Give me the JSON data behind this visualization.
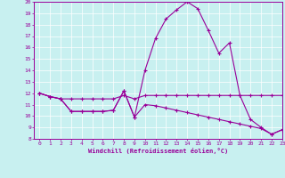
{
  "xlabel": "Windchill (Refroidissement éolien,°C)",
  "x": [
    0,
    1,
    2,
    3,
    4,
    5,
    6,
    7,
    8,
    9,
    10,
    11,
    12,
    13,
    14,
    15,
    16,
    17,
    18,
    19,
    20,
    21,
    22,
    23
  ],
  "line1": [
    12.0,
    11.7,
    11.5,
    11.5,
    11.5,
    11.5,
    11.5,
    11.5,
    11.8,
    11.5,
    11.8,
    11.8,
    11.8,
    11.8,
    11.8,
    11.8,
    11.8,
    11.8,
    11.8,
    11.8,
    11.8,
    11.8,
    11.8,
    11.8
  ],
  "line2": [
    12.0,
    11.7,
    11.5,
    10.4,
    10.4,
    10.4,
    10.4,
    10.5,
    12.2,
    9.9,
    14.0,
    16.8,
    18.5,
    19.3,
    20.0,
    19.4,
    17.5,
    15.5,
    16.4,
    11.8,
    9.7,
    9.0,
    8.4,
    8.8
  ],
  "line3": [
    12.0,
    11.7,
    11.5,
    10.4,
    10.4,
    10.4,
    10.4,
    10.5,
    12.2,
    9.9,
    11.0,
    10.9,
    10.7,
    10.5,
    10.3,
    10.1,
    9.9,
    9.7,
    9.5,
    9.3,
    9.1,
    8.9,
    8.4,
    8.8
  ],
  "line_color": "#990099",
  "bg_color": "#c8f0f0",
  "grid_color": "#ffffff",
  "ylim": [
    8,
    20
  ],
  "xlim": [
    -0.5,
    23
  ],
  "yticks": [
    8,
    9,
    10,
    11,
    12,
    13,
    14,
    15,
    16,
    17,
    18,
    19,
    20
  ],
  "xticks": [
    0,
    1,
    2,
    3,
    4,
    5,
    6,
    7,
    8,
    9,
    10,
    11,
    12,
    13,
    14,
    15,
    16,
    17,
    18,
    19,
    20,
    21,
    22,
    23
  ]
}
